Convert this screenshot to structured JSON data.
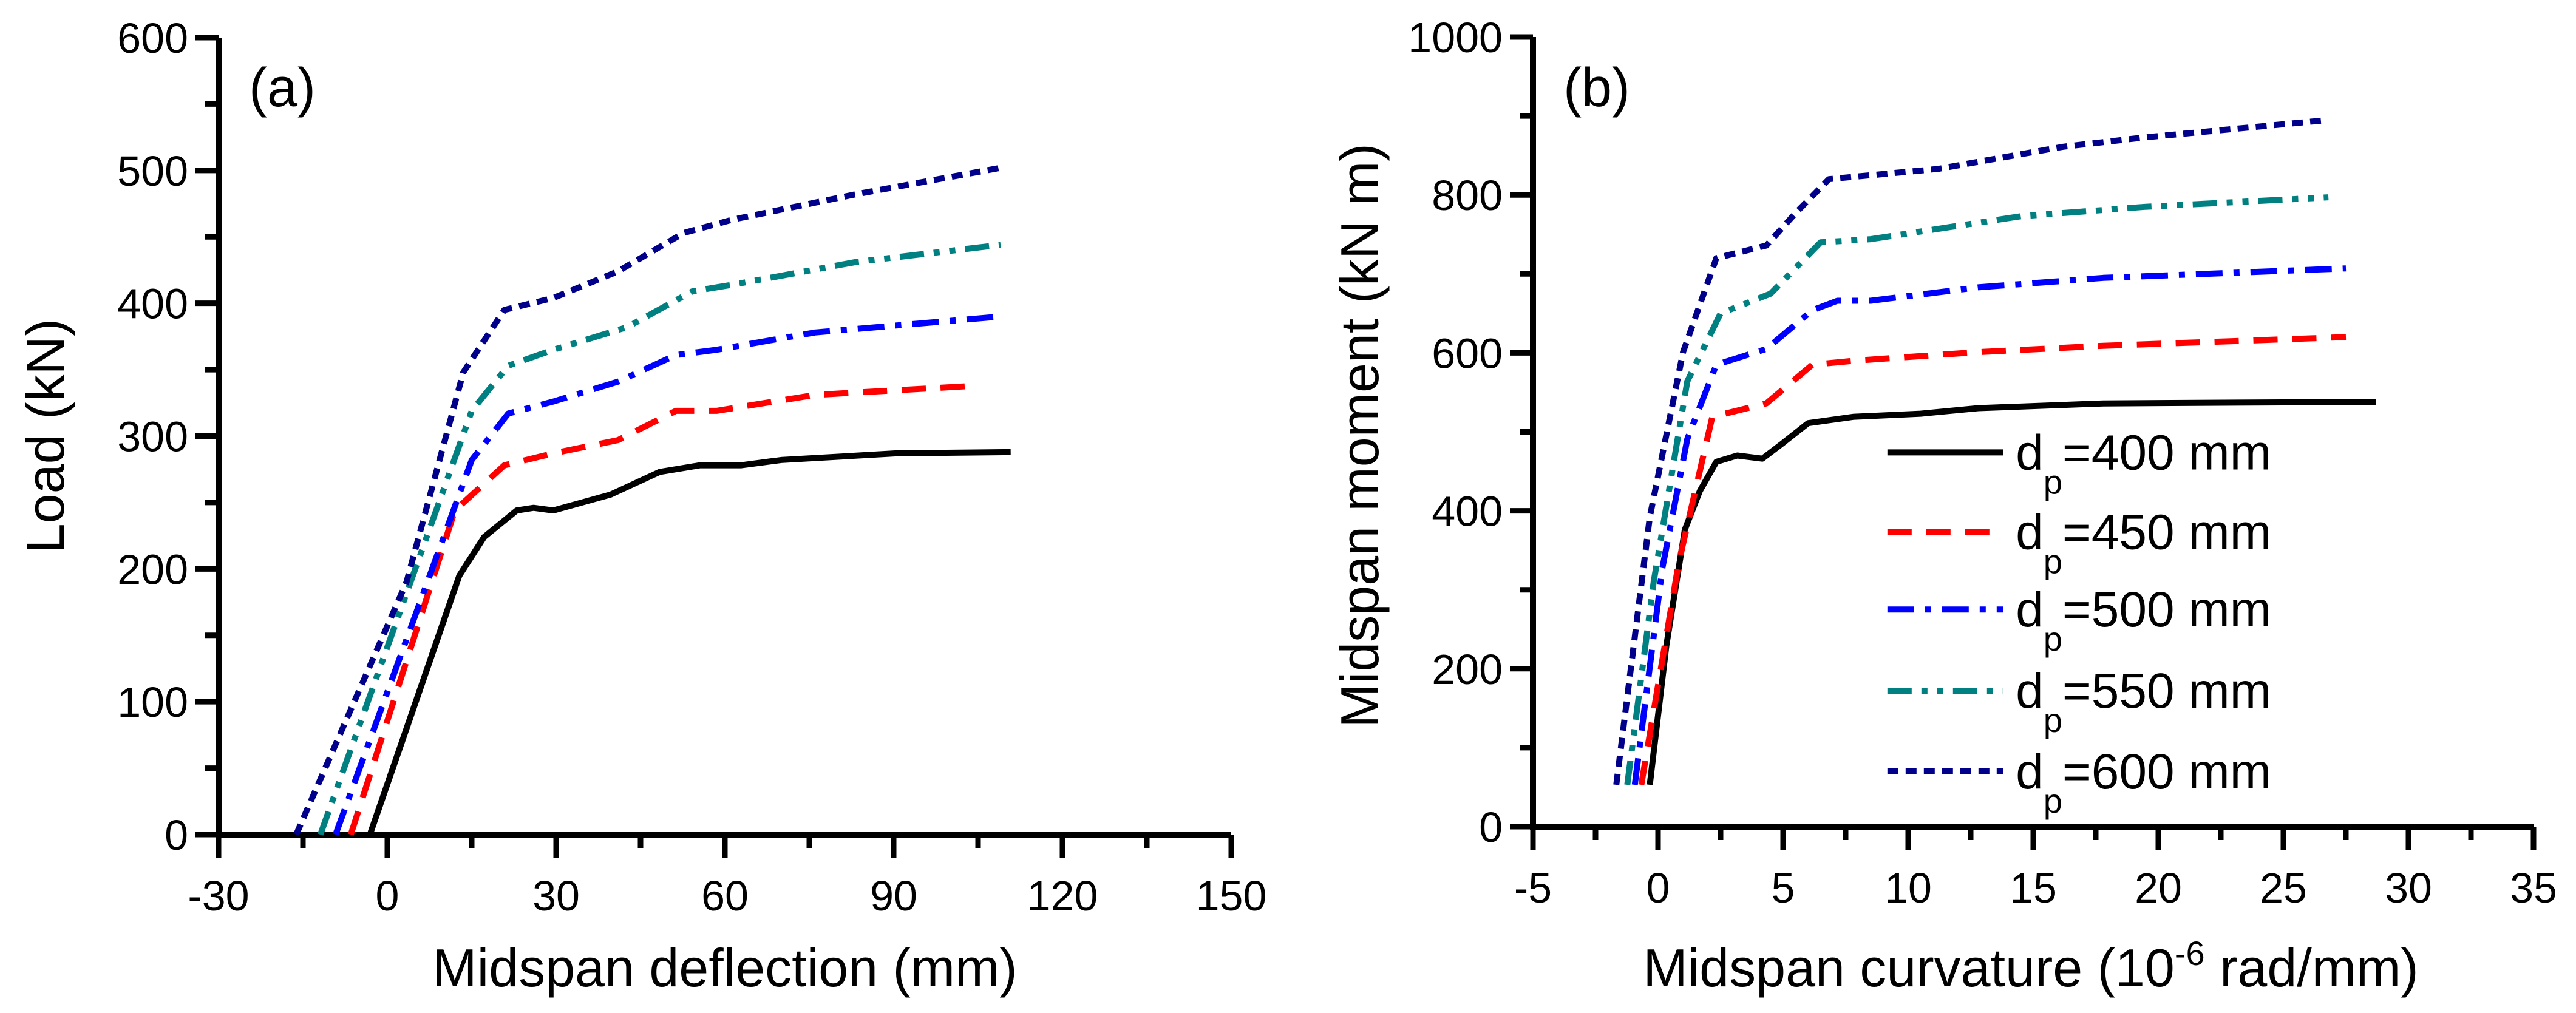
{
  "chart_data": [
    {
      "type": "line",
      "panel_label": "(a)",
      "xlabel": "Midspan deflection (mm)",
      "ylabel": "Load (kN)",
      "xlim": [
        -30,
        150
      ],
      "ylim": [
        0,
        600
      ],
      "xticks": [
        -30,
        0,
        30,
        60,
        90,
        120,
        150
      ],
      "yticks": [
        0,
        100,
        200,
        300,
        400,
        500,
        600
      ],
      "grid": false,
      "series": [
        {
          "name": "dp=400 mm",
          "color": "#000000",
          "style": "solid",
          "points": [
            [
              -3.1,
              0
            ],
            [
              12.8,
              195
            ],
            [
              17.2,
              224
            ],
            [
              23,
              244
            ],
            [
              26,
              246
            ],
            [
              29.5,
              244
            ],
            [
              39.7,
              256
            ],
            [
              48.4,
              273
            ],
            [
              55.6,
              278
            ],
            [
              62.9,
              278
            ],
            [
              70,
              282
            ],
            [
              90.5,
              287
            ],
            [
              110.8,
              288
            ]
          ]
        },
        {
          "name": "dp=450 mm",
          "color": "#ff0000",
          "style": "dash",
          "points": [
            [
              -6.5,
              0
            ],
            [
              12,
              244
            ],
            [
              20.8,
              278
            ],
            [
              29.5,
              287
            ],
            [
              41,
              297
            ],
            [
              51.3,
              319
            ],
            [
              58.5,
              319
            ],
            [
              76,
              331
            ],
            [
              105,
              338
            ]
          ]
        },
        {
          "name": "dp=500 mm",
          "color": "#0000ff",
          "style": "dashdot",
          "points": [
            [
              -9.2,
              0
            ],
            [
              15,
              282
            ],
            [
              21.5,
              317
            ],
            [
              29.5,
              326
            ],
            [
              41,
              341
            ],
            [
              51.3,
              361
            ],
            [
              58.5,
              365
            ],
            [
              76,
              378
            ],
            [
              109,
              390
            ]
          ]
        },
        {
          "name": "dp=550 mm",
          "color": "#008080",
          "style": "dashdotdot",
          "points": [
            [
              -11.9,
              0
            ],
            [
              15,
              319
            ],
            [
              21.5,
              353
            ],
            [
              29.5,
              365
            ],
            [
              42.6,
              382
            ],
            [
              54.2,
              409
            ],
            [
              61.4,
              414
            ],
            [
              83.2,
              431
            ],
            [
              109,
              444
            ]
          ]
        },
        {
          "name": "dp=600 mm",
          "color": "#00008b",
          "style": "shortdash",
          "points": [
            [
              -16.2,
              0
            ],
            [
              3.4,
              190
            ],
            [
              13.5,
              348
            ],
            [
              20.8,
              395
            ],
            [
              29.5,
              404
            ],
            [
              41,
              424
            ],
            [
              52.7,
              453
            ],
            [
              61.4,
              463
            ],
            [
              83.2,
              482
            ],
            [
              109,
              502
            ]
          ]
        }
      ]
    },
    {
      "type": "line",
      "panel_label": "(b)",
      "xlabel": "Midspan curvature (10",
      "xlabel_sup": "-6",
      "xlabel_end": " rad/mm)",
      "ylabel": "Midspan moment (kN m)",
      "xlim": [
        -5,
        35
      ],
      "ylim": [
        0,
        1000
      ],
      "xticks": [
        -5,
        0,
        5,
        10,
        15,
        20,
        25,
        30,
        35
      ],
      "yticks": [
        0,
        200,
        400,
        600,
        800,
        1000
      ],
      "grid": false,
      "legend_position": "center-right",
      "legend": [
        {
          "prefix": "d",
          "sub": "p",
          "text": "=400 mm"
        },
        {
          "prefix": "d",
          "sub": "p",
          "text": "=450 mm"
        },
        {
          "prefix": "d",
          "sub": "p",
          "text": "=500 mm"
        },
        {
          "prefix": "d",
          "sub": "p",
          "text": "=550 mm"
        },
        {
          "prefix": "d",
          "sub": "p",
          "text": "=600 mm"
        }
      ],
      "series": [
        {
          "name": "dp=400 mm",
          "color": "#000000",
          "style": "solid",
          "points": [
            [
              -0.33,
              53
            ],
            [
              0.33,
              229
            ],
            [
              1.07,
              376
            ],
            [
              1.67,
              425
            ],
            [
              2.33,
              462
            ],
            [
              3.17,
              470
            ],
            [
              4.17,
              466
            ],
            [
              5,
              486
            ],
            [
              6,
              511
            ],
            [
              7.8,
              519
            ],
            [
              10.5,
              523
            ],
            [
              12.8,
              530
            ],
            [
              17.8,
              536
            ],
            [
              28.7,
              538
            ]
          ]
        },
        {
          "name": "dp=450 mm",
          "color": "#ff0000",
          "style": "dash",
          "points": [
            [
              -0.67,
              53
            ],
            [
              0.83,
              335
            ],
            [
              2.17,
              519
            ],
            [
              4.33,
              536
            ],
            [
              6.17,
              585
            ],
            [
              7.83,
              590
            ],
            [
              12.8,
              601
            ],
            [
              17.8,
              609
            ],
            [
              27.5,
              620
            ]
          ]
        },
        {
          "name": "dp=500 mm",
          "color": "#0000ff",
          "style": "dashdot",
          "points": [
            [
              -0.93,
              53
            ],
            [
              0.17,
              327
            ],
            [
              1.17,
              491
            ],
            [
              2.33,
              585
            ],
            [
              4.33,
              605
            ],
            [
              6.17,
              654
            ],
            [
              7.17,
              666
            ],
            [
              8.5,
              666
            ],
            [
              12.8,
              683
            ],
            [
              17.8,
              695
            ],
            [
              27.5,
              707
            ]
          ]
        },
        {
          "name": "dp=550 mm",
          "color": "#008080",
          "style": "dashdotdot",
          "points": [
            [
              -1.23,
              53
            ],
            [
              -0.17,
              311
            ],
            [
              1.17,
              564
            ],
            [
              2.5,
              650
            ],
            [
              4.5,
              675
            ],
            [
              6.5,
              740
            ],
            [
              8.5,
              744
            ],
            [
              14.5,
              773
            ],
            [
              19.5,
              785
            ],
            [
              26.8,
              797
            ]
          ]
        },
        {
          "name": "dp=600 mm",
          "color": "#00008b",
          "style": "shortdash",
          "points": [
            [
              -1.67,
              53
            ],
            [
              -0.33,
              392
            ],
            [
              1,
              601
            ],
            [
              2.33,
              720
            ],
            [
              4.33,
              736
            ],
            [
              5.5,
              777
            ],
            [
              6.83,
              820
            ],
            [
              11.2,
              833
            ],
            [
              16.2,
              861
            ],
            [
              19.5,
              873
            ],
            [
              26.5,
              894
            ]
          ]
        }
      ]
    }
  ]
}
